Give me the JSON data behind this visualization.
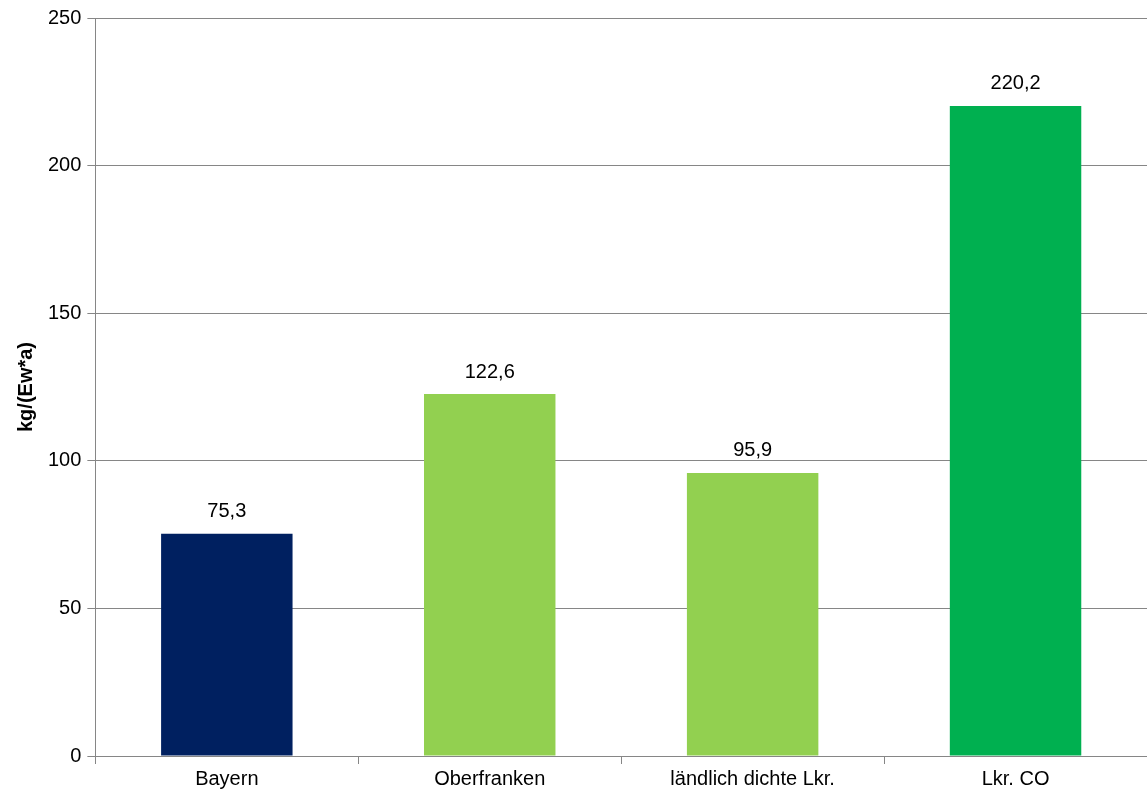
{
  "chart_data": {
    "type": "bar",
    "ylabel": "kg/(Ew*a)",
    "categories": [
      "Bayern",
      "Oberfranken",
      "ländlich dichte Lkr.",
      "Lkr. CO"
    ],
    "values": [
      75.3,
      122.6,
      95.9,
      220.2
    ],
    "colors": [
      "#002060",
      "#92d050",
      "#92d050",
      "#00b050"
    ],
    "value_labels": [
      "75,3",
      "122,6",
      "95,9",
      "220,2"
    ],
    "ylim": [
      0,
      250
    ],
    "yticks": [
      0,
      50,
      100,
      150,
      200,
      250
    ],
    "grid": "y",
    "legend": false
  }
}
